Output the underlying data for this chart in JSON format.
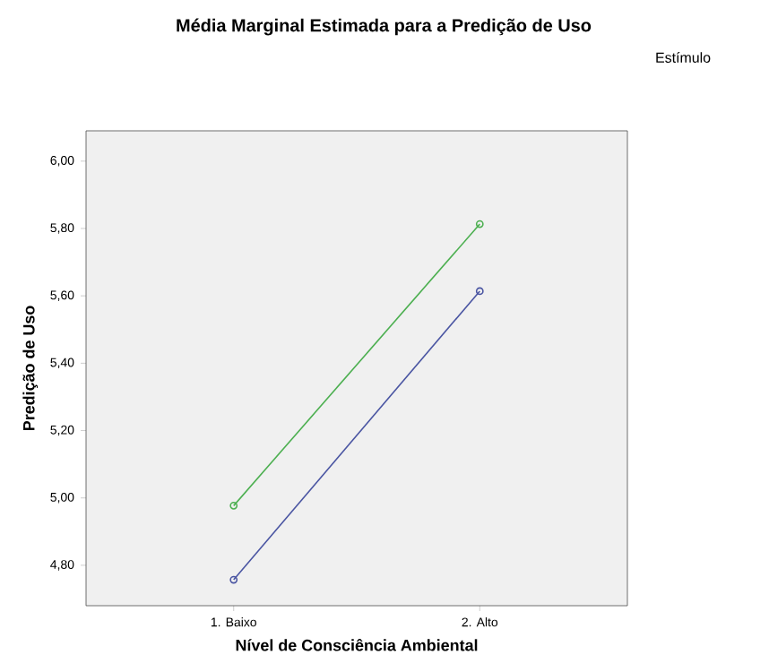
{
  "chart_data": {
    "type": "line",
    "title": "Média Marginal Estimada para a Predição de Uso",
    "xlabel": "Nível de Consciência Ambiental",
    "ylabel": "Predição de Uso",
    "legend_title": "Estímulo",
    "categories": [
      "1. Baixo",
      "2. Alto"
    ],
    "series": [
      {
        "color": "#4a55a2",
        "values": [
          4.757,
          5.614
        ]
      },
      {
        "color": "#4caf50",
        "values": [
          4.977,
          5.813
        ]
      }
    ],
    "ylim": [
      4.68,
      6.09
    ],
    "yticks": [
      {
        "value": 4.8,
        "label": "4,80"
      },
      {
        "value": 5.0,
        "label": "5,00"
      },
      {
        "value": 5.2,
        "label": "5,20"
      },
      {
        "value": 5.4,
        "label": "5,40"
      },
      {
        "value": 5.6,
        "label": "5,60"
      },
      {
        "value": 5.8,
        "label": "5,80"
      },
      {
        "value": 6.0,
        "label": "6,00"
      }
    ],
    "marker": "circle",
    "grid": false
  }
}
